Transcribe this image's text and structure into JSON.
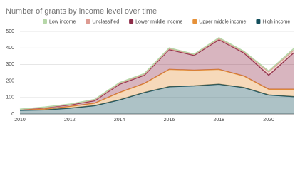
{
  "chart_data": {
    "type": "stacked-area",
    "title": "Number of grants by income level over time",
    "x": [
      2010,
      2011,
      2012,
      2013,
      2014,
      2015,
      2016,
      2017,
      2018,
      2019,
      2020,
      2021
    ],
    "series": [
      {
        "name": "Low income",
        "color": "#b6d7a8",
        "values": [
          1,
          2,
          2,
          3,
          5,
          5,
          5,
          2,
          7,
          5,
          5,
          10
        ]
      },
      {
        "name": "Unclassified",
        "color": "#dd9b92",
        "values": [
          0,
          2,
          3,
          5,
          5,
          5,
          5,
          5,
          5,
          5,
          20,
          15
        ]
      },
      {
        "name": "Lower middle income",
        "color": "#8e2c48",
        "values": [
          3,
          8,
          10,
          15,
          50,
          50,
          120,
          90,
          180,
          140,
          85,
          220
        ]
      },
      {
        "name": "Upper middle income",
        "color": "#e69138",
        "values": [
          3,
          5,
          10,
          15,
          45,
          55,
          105,
          95,
          90,
          70,
          35,
          45
        ]
      },
      {
        "name": "High income",
        "color": "#134f5c",
        "values": [
          22,
          25,
          35,
          50,
          85,
          130,
          165,
          170,
          180,
          160,
          115,
          105
        ]
      }
    ],
    "xlim": [
      2010,
      2021
    ],
    "xticks": [
      2010,
      2012,
      2014,
      2016,
      2018,
      2020
    ],
    "ylim": [
      0,
      500
    ],
    "yticks": [
      0,
      100,
      200,
      300,
      400,
      500
    ],
    "grid": true
  }
}
